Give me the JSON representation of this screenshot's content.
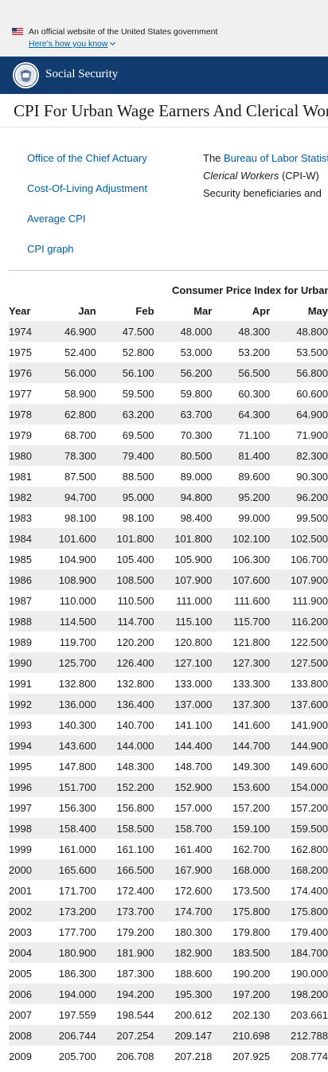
{
  "gov_banner": {
    "text": "An official website of the United States government",
    "link": "Here's how you know",
    "icon": "us-flag-icon"
  },
  "header": {
    "title": "Social Security",
    "logo": "ssa-seal-icon"
  },
  "page": {
    "title": "CPI For Urban Wage Earners And Clerical Workers"
  },
  "sidebar": {
    "links": [
      {
        "label": "Office of the Chief Actuary"
      },
      {
        "label": "Cost-Of-Living Adjustment"
      },
      {
        "label": "Average CPI"
      },
      {
        "label": "CPI graph"
      }
    ]
  },
  "intro": {
    "line1_prefix": "The ",
    "line1_link": "Bureau of Labor Statistics",
    "line2_italic": "Clerical Workers",
    "line2_rest": " (CPI-W)",
    "line3": "Security beneficiaries and"
  },
  "table": {
    "caption": "Consumer Price Index for Urban Wage Earners and Clerical Workers",
    "headers": [
      "Year",
      "Jan",
      "Feb",
      "Mar",
      "Apr",
      "May"
    ],
    "rows": [
      [
        "1974",
        "46.900",
        "47.500",
        "48.000",
        "48.300",
        "48.800"
      ],
      [
        "1975",
        "52.400",
        "52.800",
        "53.000",
        "53.200",
        "53.500"
      ],
      [
        "1976",
        "56.000",
        "56.100",
        "56.200",
        "56.500",
        "56.800"
      ],
      [
        "1977",
        "58.900",
        "59.500",
        "59.800",
        "60.300",
        "60.600"
      ],
      [
        "1978",
        "62.800",
        "63.200",
        "63.700",
        "64.300",
        "64.900"
      ],
      [
        "1979",
        "68.700",
        "69.500",
        "70.300",
        "71.100",
        "71.900"
      ],
      [
        "1980",
        "78.300",
        "79.400",
        "80.500",
        "81.400",
        "82.300"
      ],
      [
        "1981",
        "87.500",
        "88.500",
        "89.000",
        "89.600",
        "90.300"
      ],
      [
        "1982",
        "94.700",
        "95.000",
        "94.800",
        "95.200",
        "96.200"
      ],
      [
        "1983",
        "98.100",
        "98.100",
        "98.400",
        "99.000",
        "99.500"
      ],
      [
        "1984",
        "101.600",
        "101.800",
        "101.800",
        "102.100",
        "102.500"
      ],
      [
        "1985",
        "104.900",
        "105.400",
        "105.900",
        "106.300",
        "106.700"
      ],
      [
        "1986",
        "108.900",
        "108.500",
        "107.900",
        "107.600",
        "107.900"
      ],
      [
        "1987",
        "110.000",
        "110.500",
        "111.000",
        "111.600",
        "111.900"
      ],
      [
        "1988",
        "114.500",
        "114.700",
        "115.100",
        "115.700",
        "116.200"
      ],
      [
        "1989",
        "119.700",
        "120.200",
        "120.800",
        "121.800",
        "122.500"
      ],
      [
        "1990",
        "125.700",
        "126.400",
        "127.100",
        "127.300",
        "127.500"
      ],
      [
        "1991",
        "132.800",
        "132.800",
        "133.000",
        "133.300",
        "133.800"
      ],
      [
        "1992",
        "136.000",
        "136.400",
        "137.000",
        "137.300",
        "137.600"
      ],
      [
        "1993",
        "140.300",
        "140.700",
        "141.100",
        "141.600",
        "141.900"
      ],
      [
        "1994",
        "143.600",
        "144.000",
        "144.400",
        "144.700",
        "144.900"
      ],
      [
        "1995",
        "147.800",
        "148.300",
        "148.700",
        "149.300",
        "149.600"
      ],
      [
        "1996",
        "151.700",
        "152.200",
        "152.900",
        "153.600",
        "154.000"
      ],
      [
        "1997",
        "156.300",
        "156.800",
        "157.000",
        "157.200",
        "157.200"
      ],
      [
        "1998",
        "158.400",
        "158.500",
        "158.700",
        "159.100",
        "159.500"
      ],
      [
        "1999",
        "161.000",
        "161.100",
        "161.400",
        "162.700",
        "162.800"
      ],
      [
        "2000",
        "165.600",
        "166.500",
        "167.900",
        "168.000",
        "168.200"
      ],
      [
        "2001",
        "171.700",
        "172.400",
        "172.600",
        "173.500",
        "174.400"
      ],
      [
        "2002",
        "173.200",
        "173.700",
        "174.700",
        "175.800",
        "175.800"
      ],
      [
        "2003",
        "177.700",
        "179.200",
        "180.300",
        "179.800",
        "179.400"
      ],
      [
        "2004",
        "180.900",
        "181.900",
        "182.900",
        "183.500",
        "184.700"
      ],
      [
        "2005",
        "186.300",
        "187.300",
        "188.600",
        "190.200",
        "190.000"
      ],
      [
        "2006",
        "194.000",
        "194.200",
        "195.300",
        "197.200",
        "198.200"
      ],
      [
        "2007",
        "197.559",
        "198.544",
        "200.612",
        "202.130",
        "203.661"
      ],
      [
        "2008",
        "206.744",
        "207.254",
        "209.147",
        "210.698",
        "212.788"
      ],
      [
        "2009",
        "205.700",
        "206.708",
        "207.218",
        "207.925",
        "208.774"
      ]
    ]
  },
  "colors": {
    "header_bg": "#123c70",
    "link": "#005ea2",
    "stripe": "#ededed"
  }
}
